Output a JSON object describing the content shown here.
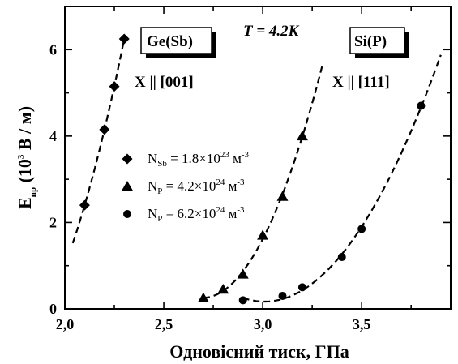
{
  "chart_data": {
    "type": "scatter",
    "title": "",
    "xlabel": "Одновісний тиск, ГПа",
    "ylabel_main": "E",
    "ylabel_sub": "пр",
    "ylabel_rest": "(10",
    "ylabel_sup": "3",
    "ylabel_unit": "В / м)",
    "xlim": [
      2.0,
      3.95
    ],
    "ylim": [
      0,
      7.0
    ],
    "xticks": [
      2.0,
      2.5,
      3.0,
      3.5
    ],
    "xtick_labels": [
      "2,0",
      "2,5",
      "3,0",
      "3,5"
    ],
    "yticks": [
      0,
      2,
      4,
      6
    ],
    "ytick_labels": [
      "0",
      "2",
      "4",
      "6"
    ],
    "series": [
      {
        "marker": "diamond",
        "legend": {
          "main": "N",
          "sub": "Sb",
          "value": " = 1.8×10",
          "exp": "23",
          "unit": " м",
          "unit_exp": "-3"
        },
        "x": [
          2.1,
          2.2,
          2.25,
          2.3
        ],
        "y": [
          2.4,
          4.15,
          5.15,
          6.25
        ],
        "fit_x_range": [
          2.04,
          2.3
        ]
      },
      {
        "marker": "triangle",
        "legend": {
          "main": "N",
          "sub": "P",
          "value": " = 4.2×10",
          "exp": "24",
          "unit": " м",
          "unit_exp": "-3"
        },
        "x": [
          2.7,
          2.8,
          2.9,
          3.0,
          3.1,
          3.2
        ],
        "y": [
          0.25,
          0.45,
          0.8,
          1.7,
          2.6,
          4.0
        ],
        "fit_x_range": [
          2.7,
          3.3
        ]
      },
      {
        "marker": "circle",
        "legend": {
          "main": "N",
          "sub": "P",
          "value": " = 6.2×10",
          "exp": "24",
          "unit": " м",
          "unit_exp": "-3"
        },
        "x": [
          2.9,
          3.1,
          3.2,
          3.4,
          3.5,
          3.8
        ],
        "y": [
          0.2,
          0.3,
          0.5,
          1.2,
          1.85,
          4.7
        ],
        "fit_x_range": [
          2.9,
          3.9
        ]
      }
    ],
    "annotations": {
      "temperature": "T = 4.2K",
      "ge_label": "Ge(Sb)",
      "ge_direction": "X || [001]",
      "si_label": "Si(P)",
      "si_direction": "X || [111]"
    },
    "grid": false,
    "legend_position": "center-left"
  }
}
